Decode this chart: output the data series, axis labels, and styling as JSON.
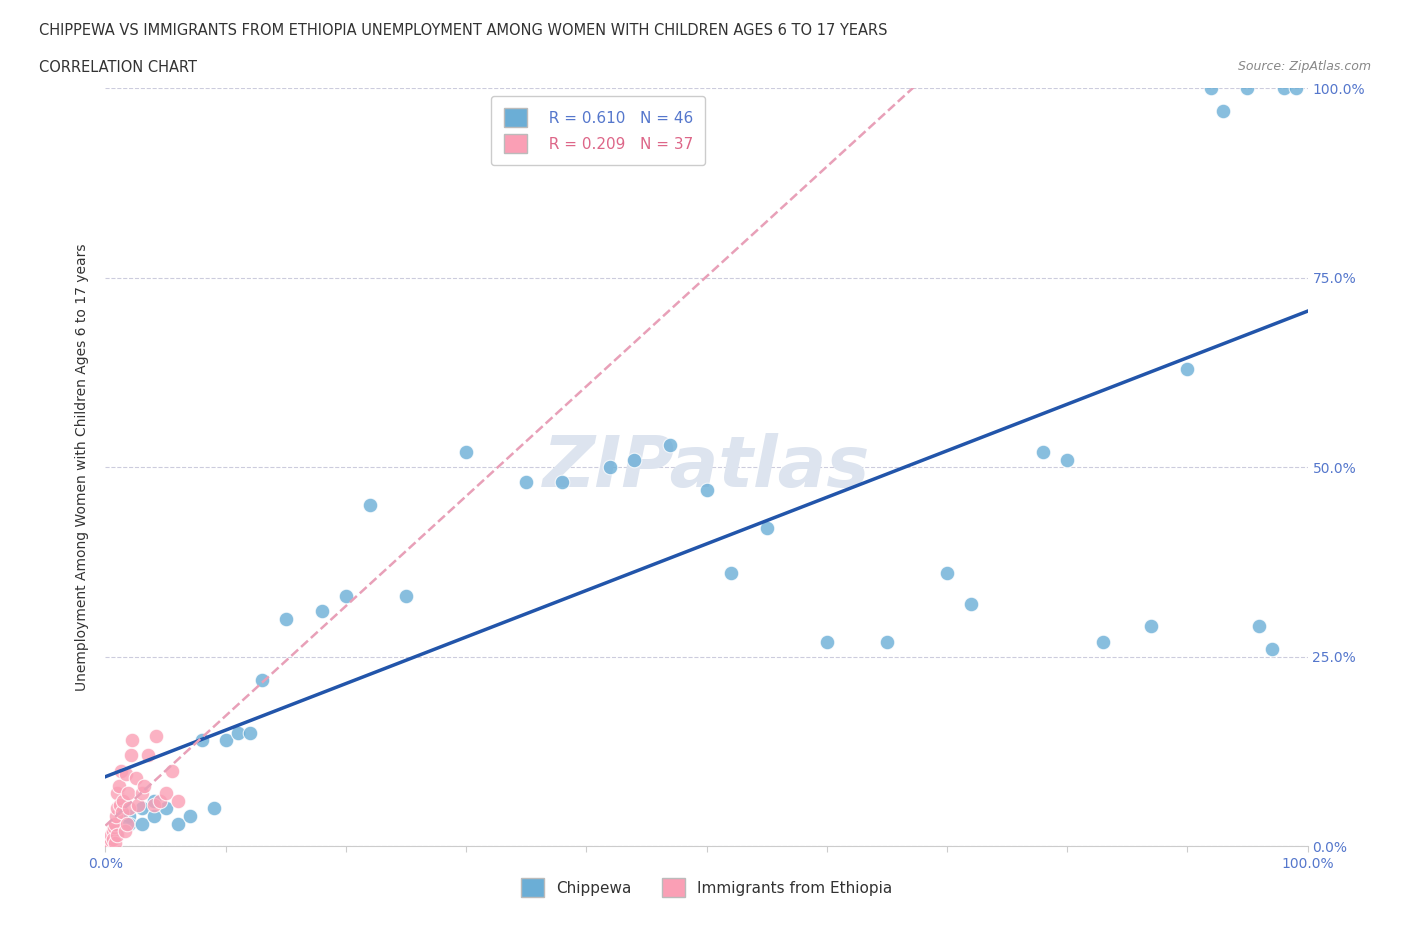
{
  "title_line1": "CHIPPEWA VS IMMIGRANTS FROM ETHIOPIA UNEMPLOYMENT AMONG WOMEN WITH CHILDREN AGES 6 TO 17 YEARS",
  "title_line2": "CORRELATION CHART",
  "source_text": "Source: ZipAtlas.com",
  "ylabel": "Unemployment Among Women with Children Ages 6 to 17 years",
  "xlim": [
    0.0,
    1.0
  ],
  "ylim": [
    0.0,
    1.0
  ],
  "ytick_positions": [
    0.0,
    0.25,
    0.5,
    0.75,
    1.0
  ],
  "right_ytick_labels": [
    "100.0%",
    "75.0%",
    "50.0%",
    "25.0%",
    "0.0%"
  ],
  "chippewa_color": "#6baed6",
  "ethiopia_color": "#fa9fb5",
  "chippewa_line_color": "#2255aa",
  "ethiopia_line_color": "#e8a0b8",
  "chippewa_R": 0.61,
  "chippewa_N": 46,
  "ethiopia_R": 0.209,
  "ethiopia_N": 37,
  "watermark": "ZIPatlas",
  "watermark_color": "#dde4ef",
  "chippewa_x": [
    0.01,
    0.02,
    0.02,
    0.03,
    0.03,
    0.04,
    0.04,
    0.05,
    0.06,
    0.07,
    0.08,
    0.09,
    0.1,
    0.11,
    0.12,
    0.13,
    0.15,
    0.18,
    0.2,
    0.22,
    0.25,
    0.3,
    0.35,
    0.38,
    0.42,
    0.44,
    0.47,
    0.5,
    0.52,
    0.55,
    0.6,
    0.65,
    0.7,
    0.72,
    0.78,
    0.8,
    0.83,
    0.87,
    0.9,
    0.92,
    0.93,
    0.95,
    0.96,
    0.97,
    0.98,
    0.99
  ],
  "chippewa_y": [
    0.02,
    0.04,
    0.03,
    0.05,
    0.03,
    0.04,
    0.06,
    0.05,
    0.03,
    0.04,
    0.14,
    0.05,
    0.14,
    0.15,
    0.15,
    0.22,
    0.3,
    0.31,
    0.33,
    0.45,
    0.33,
    0.52,
    0.48,
    0.48,
    0.5,
    0.51,
    0.53,
    0.47,
    0.36,
    0.42,
    0.27,
    0.27,
    0.36,
    0.32,
    0.52,
    0.51,
    0.27,
    0.29,
    0.63,
    1.0,
    0.97,
    1.0,
    0.29,
    0.26,
    1.0,
    1.0
  ],
  "ethiopia_x": [
    0.002,
    0.003,
    0.004,
    0.005,
    0.005,
    0.006,
    0.006,
    0.007,
    0.008,
    0.008,
    0.009,
    0.01,
    0.01,
    0.01,
    0.011,
    0.012,
    0.013,
    0.014,
    0.015,
    0.016,
    0.017,
    0.018,
    0.019,
    0.02,
    0.021,
    0.022,
    0.025,
    0.027,
    0.03,
    0.032,
    0.035,
    0.04,
    0.042,
    0.045,
    0.05,
    0.055,
    0.06
  ],
  "ethiopia_y": [
    0.002,
    0.003,
    0.005,
    0.008,
    0.015,
    0.02,
    0.01,
    0.025,
    0.03,
    0.005,
    0.04,
    0.05,
    0.07,
    0.015,
    0.08,
    0.055,
    0.1,
    0.045,
    0.06,
    0.02,
    0.095,
    0.03,
    0.07,
    0.05,
    0.12,
    0.14,
    0.09,
    0.055,
    0.07,
    0.08,
    0.12,
    0.055,
    0.145,
    0.06,
    0.07,
    0.1,
    0.06
  ],
  "background_color": "#ffffff",
  "plot_bg_color": "#ffffff",
  "grid_color": "#ccccdd",
  "axis_color": "#5577cc",
  "text_color": "#333333"
}
